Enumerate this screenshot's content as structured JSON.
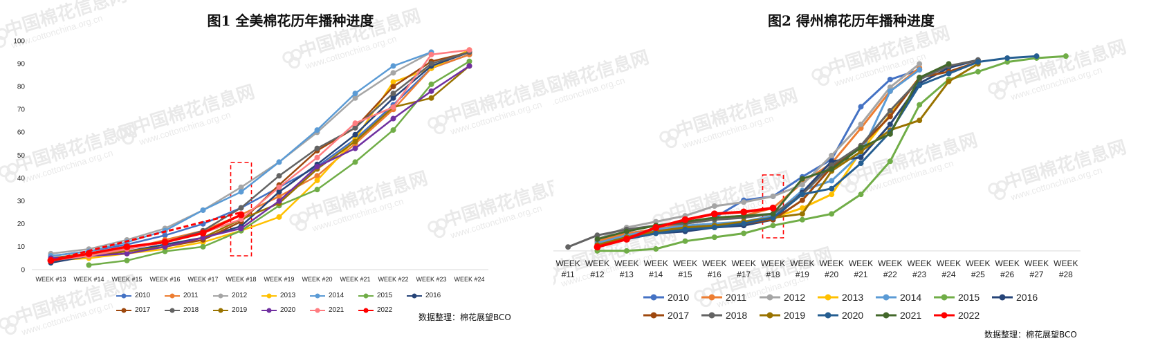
{
  "chart_data": [
    {
      "type": "line",
      "title": "图1 全美棉花历年播种进度",
      "xlabel": "",
      "ylabel": "",
      "categories": [
        "WEEK #13",
        "WEEK #14",
        "WEEK #15",
        "WEEK #16",
        "WEEK #17",
        "WEEK #18",
        "WEEK #19",
        "WEEK #20",
        "WEEK #21",
        "WEEK #22",
        "WEEK #23",
        "WEEK #24"
      ],
      "ylim": [
        0,
        100
      ],
      "yticks": [
        0,
        10,
        20,
        30,
        40,
        50,
        60,
        70,
        80,
        90,
        100
      ],
      "grid": false,
      "legend_position": "bottom",
      "highlight_category": "WEEK #18",
      "series": [
        {
          "name": "2010",
          "color": "#4472C4",
          "values": [
            6,
            8,
            11,
            15,
            20,
            27,
            36,
            45,
            57,
            72,
            88,
            94
          ]
        },
        {
          "name": "2011",
          "color": "#ED7D31",
          "values": [
            5,
            7,
            9,
            13,
            17,
            24,
            32,
            41,
            55,
            70,
            88,
            94
          ]
        },
        {
          "name": "2012",
          "color": "#A5A5A5",
          "values": [
            7,
            9,
            13,
            18,
            26,
            36,
            47,
            60,
            75,
            86,
            95,
            null
          ]
        },
        {
          "name": "2013",
          "color": "#FFC000",
          "values": [
            4,
            5,
            7,
            9,
            12,
            17,
            23,
            39,
            57,
            82,
            88,
            96
          ]
        },
        {
          "name": "2014",
          "color": "#5B9BD5",
          "values": [
            6,
            8,
            12,
            17,
            26,
            34,
            47,
            61,
            77,
            89,
            95,
            null
          ]
        },
        {
          "name": "2015",
          "color": "#70AD47",
          "values": [
            null,
            2,
            4,
            8,
            10,
            17,
            28,
            35,
            47,
            61,
            81,
            91
          ]
        },
        {
          "name": "2016",
          "color": "#264478",
          "values": [
            3,
            6,
            8,
            11,
            14,
            19,
            34,
            46,
            59,
            75,
            89,
            95
          ]
        },
        {
          "name": "2017",
          "color": "#9E480E",
          "values": [
            4,
            6,
            8,
            10,
            13,
            21,
            37,
            52,
            62,
            80,
            91,
            95
          ]
        },
        {
          "name": "2018",
          "color": "#636363",
          "values": [
            4,
            6,
            9,
            12,
            17,
            27,
            41,
            53,
            62,
            77,
            90,
            95
          ]
        },
        {
          "name": "2019",
          "color": "#997300",
          "values": [
            5,
            7,
            8,
            10,
            14,
            22,
            29,
            44,
            56,
            71,
            75,
            89
          ]
        },
        {
          "name": "2020",
          "color": "#7030A0",
          "values": [
            5,
            6,
            7,
            10,
            14,
            18,
            30,
            45,
            53,
            66,
            78,
            89
          ]
        },
        {
          "name": "2021",
          "color": "#FF7C80",
          "values": [
            4,
            6,
            9,
            12,
            16,
            22,
            36,
            49,
            64,
            71,
            94,
            96
          ]
        },
        {
          "name": "2022",
          "color": "#FF0000",
          "values": [
            4,
            7,
            10,
            12,
            16,
            24,
            null,
            null,
            null,
            null,
            null,
            null
          ]
        }
      ],
      "trend_series": {
        "name": "2022",
        "color": "#FF0000",
        "x": [
          "WEEK #13",
          "WEEK #18"
        ],
        "values": [
          4,
          25
        ]
      }
    },
    {
      "type": "line",
      "title": "图2 得州棉花历年播种进度",
      "xlabel": "",
      "ylabel": "",
      "categories": [
        [
          "WEEK",
          "#11"
        ],
        [
          "WEEK",
          "#12"
        ],
        [
          "WEEK",
          "#13"
        ],
        [
          "WEEK",
          "#14"
        ],
        [
          "WEEK",
          "#15"
        ],
        [
          "WEEK",
          "#16"
        ],
        [
          "WEEK",
          "#17"
        ],
        [
          "WEEK",
          "#18"
        ],
        [
          "WEEK",
          "#19"
        ],
        [
          "WEEK",
          "#20"
        ],
        [
          "WEEK",
          "#21"
        ],
        [
          "WEEK",
          "#22"
        ],
        [
          "WEEK",
          "#23"
        ],
        [
          "WEEK",
          "#24"
        ],
        [
          "WEEK",
          "#25"
        ],
        [
          "WEEK",
          "#26"
        ],
        [
          "WEEK",
          "#27"
        ],
        [
          "WEEK",
          "#28"
        ]
      ],
      "ylim": [
        -10,
        110
      ],
      "yticks": [
        -10,
        10,
        30,
        50,
        70,
        90,
        110
      ],
      "grid": false,
      "legend_position": "bottom",
      "highlight_category": "WEEK #18",
      "series": [
        {
          "name": "2010",
          "color": "#4472C4",
          "values": [
            null,
            5,
            9,
            11,
            14,
            17,
            26,
            28,
            38,
            47,
            74,
            88,
            93,
            null,
            null,
            null,
            null,
            null
          ]
        },
        {
          "name": "2011",
          "color": "#ED7D31",
          "values": [
            null,
            5,
            9,
            11,
            14,
            17,
            18,
            22,
            35,
            45,
            63,
            82,
            94,
            null,
            null,
            null,
            null,
            null
          ]
        },
        {
          "name": "2012",
          "color": "#A5A5A5",
          "values": [
            null,
            6,
            12,
            15,
            18,
            23,
            25,
            28,
            34,
            49,
            65,
            84,
            96,
            null,
            null,
            null,
            null,
            null
          ]
        },
        {
          "name": "2013",
          "color": "#FFC000",
          "values": [
            null,
            3,
            7,
            10,
            12,
            13,
            15,
            17,
            22,
            29,
            51,
            70,
            89,
            null,
            null,
            null,
            null,
            null
          ]
        },
        {
          "name": "2014",
          "color": "#5B9BD5",
          "values": [
            null,
            4,
            8,
            11,
            13,
            14,
            15,
            18,
            31,
            36,
            50,
            82,
            93,
            null,
            null,
            null,
            null,
            null
          ]
        },
        {
          "name": "2015",
          "color": "#70AD47",
          "values": [
            null,
            0,
            0,
            1,
            5,
            7,
            9,
            13,
            16,
            19,
            29,
            46,
            75,
            88,
            92,
            97,
            99,
            100
          ]
        },
        {
          "name": "2016",
          "color": "#264478",
          "values": [
            null,
            3,
            6,
            9,
            10,
            12,
            13,
            16,
            30,
            46,
            48,
            65,
            86,
            94,
            98,
            null,
            null,
            null
          ]
        },
        {
          "name": "2017",
          "color": "#9E480E",
          "values": [
            null,
            3,
            7,
            10,
            12,
            13,
            14,
            16,
            26,
            43,
            54,
            69,
            89,
            92,
            97,
            null,
            null,
            null
          ]
        },
        {
          "name": "2018",
          "color": "#636363",
          "values": [
            2,
            8,
            11,
            13,
            14,
            16,
            17,
            19,
            29,
            44,
            54,
            72,
            88,
            95,
            98,
            null,
            null,
            null
          ]
        },
        {
          "name": "2019",
          "color": "#997300",
          "values": [
            null,
            3,
            7,
            10,
            12,
            13,
            15,
            17,
            19,
            41,
            51,
            62,
            67,
            87,
            96,
            null,
            null,
            null
          ]
        },
        {
          "name": "2020",
          "color": "#255E91",
          "values": [
            null,
            2,
            6,
            9,
            11,
            12,
            14,
            17,
            29,
            32,
            45,
            61,
            85,
            91,
            97,
            99,
            100,
            null
          ]
        },
        {
          "name": "2021",
          "color": "#43682B",
          "values": [
            null,
            6,
            10,
            13,
            15,
            17,
            18,
            19,
            37,
            42,
            53,
            60,
            89,
            96,
            null,
            null,
            null,
            null
          ]
        },
        {
          "name": "2022",
          "color": "#FF0000",
          "values": [
            null,
            2,
            6,
            12,
            16,
            19,
            20,
            22,
            null,
            null,
            null,
            null,
            null,
            null,
            null,
            null,
            null,
            null
          ]
        }
      ]
    }
  ],
  "watermark": {
    "cn": "中国棉花信息网",
    "url": "www.cottonchina.org.cn"
  },
  "chart1_source": "数据整理：棉花展望BCO",
  "chart2_source": "数据整理：棉花展望BCO"
}
